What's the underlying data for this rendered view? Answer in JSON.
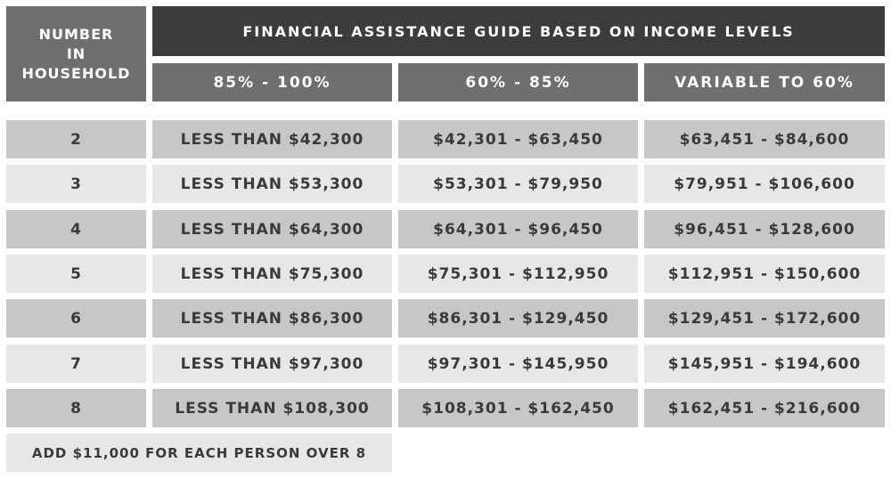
{
  "header": {
    "household_label_lines": [
      "NUMBER",
      "IN",
      "HOUSEHOLD"
    ],
    "title": "FINANCIAL ASSISTANCE GUIDE BASED ON INCOME LEVELS",
    "columns": [
      "85% - 100%",
      "60% - 85%",
      "VARIABLE TO 60%"
    ]
  },
  "rows": [
    {
      "household": "2",
      "c1": "LESS THAN $42,300",
      "c2": "$42,301 - $63,450",
      "c3": "$63,451 - $84,600"
    },
    {
      "household": "3",
      "c1": "LESS THAN $53,300",
      "c2": "$53,301 - $79,950",
      "c3": "$79,951 - $106,600"
    },
    {
      "household": "4",
      "c1": "LESS THAN $64,300",
      "c2": "$64,301 - $96,450",
      "c3": "$96,451 - $128,600"
    },
    {
      "household": "5",
      "c1": "LESS THAN $75,300",
      "c2": "$75,301 - $112,950",
      "c3": "$112,951 - $150,600"
    },
    {
      "household": "6",
      "c1": "LESS THAN $86,300",
      "c2": "$86,301 - $129,450",
      "c3": "$129,451 - $172,600"
    },
    {
      "household": "7",
      "c1": "LESS THAN $97,300",
      "c2": "$97,301 - $145,950",
      "c3": "$145,951 - $194,600"
    },
    {
      "household": "8",
      "c1": "LESS THAN $108,300",
      "c2": "$108,301 - $162,450",
      "c3": "$162,451 - $216,600"
    }
  ],
  "footer": "ADD $11,000 FOR EACH PERSON OVER 8",
  "colors": {
    "title_bg": "#3c3c3c",
    "header_bg": "#6e6f71",
    "row_dark": "#c6c7c9",
    "row_light": "#e7e7e8",
    "text": "#3a3a3a"
  }
}
